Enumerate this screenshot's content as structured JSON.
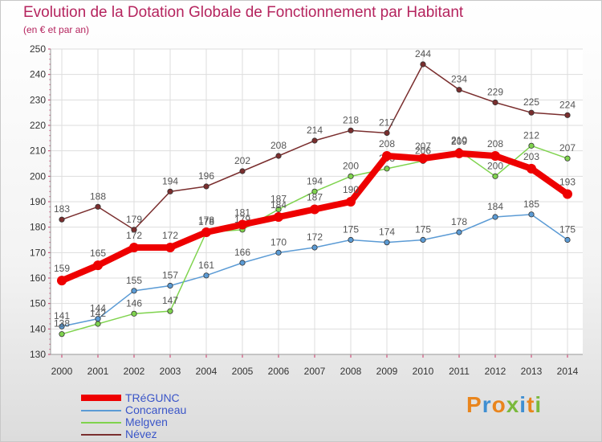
{
  "header": {
    "title": "Evolution de la Dotation Globale de Fonctionnement par Habitant",
    "subtitle": "(en € et par an)"
  },
  "logo": {
    "text": "Proxiti"
  },
  "chart_data": {
    "type": "line",
    "title": "Evolution de la Dotation Globale de Fonctionnement par Habitant",
    "subtitle": "(en € et par an)",
    "xlabel": "",
    "ylabel": "",
    "ylim": [
      130,
      250
    ],
    "yticks": [
      130,
      140,
      150,
      160,
      170,
      180,
      190,
      200,
      210,
      220,
      230,
      240,
      250
    ],
    "grid": true,
    "legend_position": "bottom-left",
    "categories": [
      "2000",
      "2001",
      "2002",
      "2003",
      "2004",
      "2005",
      "2006",
      "2007",
      "2008",
      "2009",
      "2010",
      "2011",
      "2012",
      "2013",
      "2014"
    ],
    "series": [
      {
        "name": "TRéGUNC",
        "color": "#ee0000",
        "emphasis": true,
        "values": [
          159,
          165,
          172,
          172,
          178,
          181,
          184,
          187,
          190,
          208,
          207,
          209,
          208,
          203,
          193
        ]
      },
      {
        "name": "Concarneau",
        "color": "#5b9bd5",
        "emphasis": false,
        "values": [
          141,
          144,
          155,
          157,
          161,
          166,
          170,
          172,
          175,
          174,
          175,
          178,
          184,
          185,
          175
        ]
      },
      {
        "name": "Melgven",
        "color": "#7fd34e",
        "emphasis": false,
        "values": [
          138,
          142,
          146,
          147,
          178,
          179,
          187,
          194,
          200,
          203,
          206,
          210,
          200,
          212,
          207
        ]
      },
      {
        "name": "Névez",
        "color": "#7a2e2e",
        "emphasis": false,
        "values": [
          183,
          188,
          179,
          194,
          196,
          202,
          208,
          214,
          218,
          217,
          244,
          234,
          229,
          225,
          224
        ]
      }
    ]
  }
}
